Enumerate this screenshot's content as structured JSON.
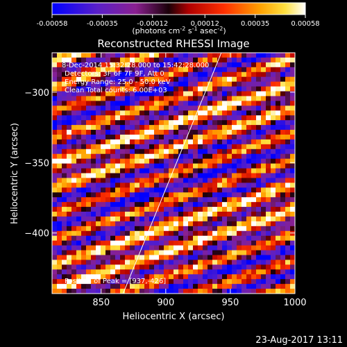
{
  "chart_data": {
    "type": "heatmap",
    "title": "Reconstructed RHESSI Image",
    "xlabel": "Heliocentric X (arcsec)",
    "ylabel": "Heliocentric Y (arcsec)",
    "xlim": [
      812,
      1000
    ],
    "ylim": [
      -443,
      -272
    ],
    "x_ticks": [
      850,
      900,
      950,
      1000
    ],
    "y_ticks": [
      -300,
      -350,
      -400
    ],
    "colorbar": {
      "min": -0.00058,
      "max": 0.00058,
      "ticks": [
        -0.00058,
        -0.00035,
        -0.00012,
        0.00012,
        0.00035,
        0.00058
      ],
      "tick_labels": [
        "-0.00058",
        "-0.00035",
        "-0.00012",
        "0.00012",
        "0.00035",
        "0.00058"
      ],
      "unit": "(photons cm",
      "unit_parts": [
        "(photons cm",
        "-2",
        " s",
        "-1",
        " asec",
        "-2",
        ")"
      ]
    },
    "annotations": {
      "time": "8-Dec-2014 15:32:28.000 to 15:42:28.000",
      "detectors": "Detectors: 3F 6F 7F 9F, Att 0",
      "energy": "Energy Range: 25.0 - 50.0 keV",
      "clean": "Clean     Total counts: 6.00E+03",
      "peak": "Position of Peak = [937,-426]"
    },
    "limb_line": {
      "x": [
        867,
        943
      ],
      "y": [
        -443,
        -272
      ]
    },
    "stripe_pattern": {
      "orientation": "diagonal, rising to the right",
      "rows": 50,
      "cols": 50
    },
    "footer_timestamp": "23-Aug-2017 13:11"
  }
}
